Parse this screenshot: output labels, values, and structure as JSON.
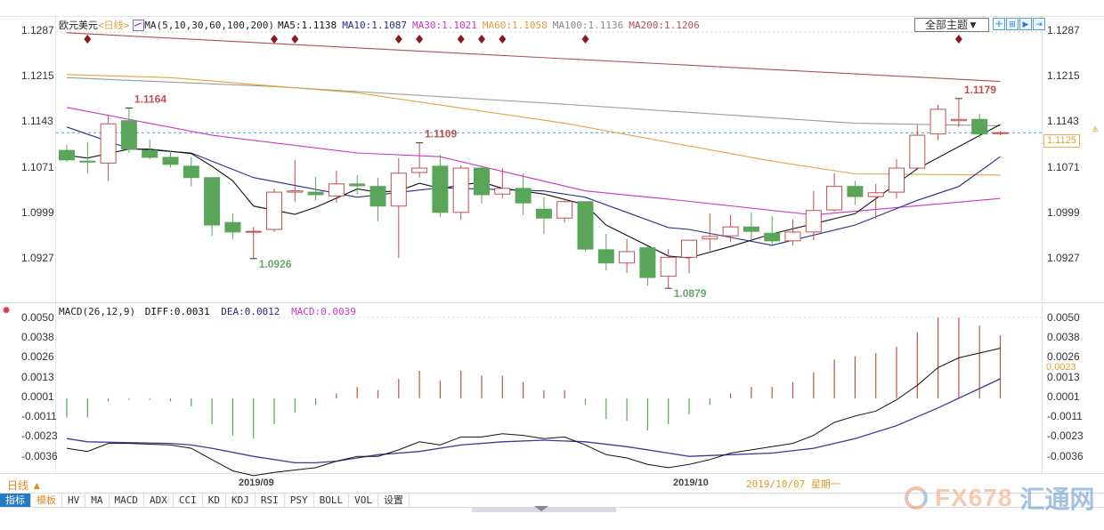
{
  "header": {
    "symbol": "欧元美元",
    "period": "<日线>",
    "ma_params": "MA(5,10,30,60,100,200)",
    "ma5": "MA5:1.1138",
    "ma10": "MA10:1.1087",
    "ma30": "MA30:1.1021",
    "ma60": "MA60:1.1058",
    "ma100": "MA100:1.1136",
    "ma200": "MA200:1.1206"
  },
  "toolbar": {
    "theme_select": "全部主题▼",
    "buttons": [
      {
        "icon": "crosshair-icon",
        "glyph": "✛"
      },
      {
        "icon": "zoom-range-icon",
        "glyph": "⊞"
      },
      {
        "icon": "play-icon",
        "glyph": "▶"
      },
      {
        "icon": "jump-end-icon",
        "glyph": "⇥"
      }
    ]
  },
  "macd_header": {
    "params": "MACD(26,12,9)",
    "diff": "DIFF:0.0031",
    "dea": "DEA:0.0012",
    "macd": "MACD:0.0039"
  },
  "colors": {
    "up": "#c0504d",
    "down": "#5aa55a",
    "ma5": "#111111",
    "ma10": "#2a2a8a",
    "ma30": "#cc33cc",
    "ma60": "#e8a040",
    "ma100": "#9a9a9a",
    "ma200": "#b05050",
    "diff": "#111111",
    "dea": "#3a3a9a",
    "signal_marker": "#8b1a1a",
    "last_price_line": "#3a9ad8"
  },
  "price_axis": {
    "ticks": [
      "1.1287",
      "1.1215",
      "1.1143",
      "1.1071",
      "1.0999",
      "1.0927"
    ],
    "last_price": "1.1125",
    "last_price_arrow": "≜"
  },
  "macd_axis": {
    "ticks": [
      "0.0050",
      "0.0038",
      "0.0026",
      "0.0013",
      "0.0001",
      "-0.0011",
      "-0.0023",
      "-0.0036"
    ],
    "current": "0.0023"
  },
  "annotations": {
    "high1": "1.1164",
    "low1": "1.0926",
    "high2": "1.1109",
    "low2": "1.0879",
    "high3": "1.1179"
  },
  "footer": {
    "period_label": "日线 ▲",
    "date_sep": "2019/09",
    "date_oct": "2019/10",
    "cursor_date": "2019/10/07 星期一",
    "tabs": [
      "指标",
      "模板",
      "HV",
      "MA",
      "MACD",
      "ADX",
      "CCI",
      "KD",
      "KDJ",
      "RSI",
      "PSY",
      "BOLL",
      "VOL",
      "设置"
    ],
    "watermark_brand": "FX678",
    "watermark_cn": "汇通网"
  },
  "chart_data": {
    "type": "candlestick",
    "title": "欧元美元 日线",
    "ohlc": [
      [
        1.1097,
        1.1106,
        1.1079,
        1.1082
      ],
      [
        1.108,
        1.111,
        1.1061,
        1.1079
      ],
      [
        1.1077,
        1.1151,
        1.1049,
        1.1139
      ],
      [
        1.1144,
        1.1164,
        1.1093,
        1.1099
      ],
      [
        1.1097,
        1.1114,
        1.1083,
        1.1086
      ],
      [
        1.1086,
        1.1096,
        1.107,
        1.1075
      ],
      [
        1.1072,
        1.1086,
        1.104,
        1.1054
      ],
      [
        1.1054,
        1.1054,
        1.0962,
        1.0979
      ],
      [
        1.0983,
        1.0997,
        1.0957,
        1.0968
      ],
      [
        1.0968,
        1.0976,
        1.0926,
        1.0969
      ],
      [
        1.0972,
        1.1037,
        1.0968,
        1.1031
      ],
      [
        1.1031,
        1.1082,
        1.1016,
        1.1033
      ],
      [
        1.1031,
        1.1055,
        1.1018,
        1.1027
      ],
      [
        1.1025,
        1.1065,
        1.1014,
        1.1044
      ],
      [
        1.1044,
        1.1058,
        1.1028,
        1.1041
      ],
      [
        1.104,
        1.1054,
        1.0985,
        1.1009
      ],
      [
        1.1009,
        1.1085,
        1.0927,
        1.1061
      ],
      [
        1.1062,
        1.1109,
        1.1054,
        1.1069
      ],
      [
        1.1072,
        1.109,
        1.0992,
        1.0999
      ],
      [
        1.0999,
        1.1073,
        1.0988,
        1.1069
      ],
      [
        1.1069,
        1.1073,
        1.1013,
        1.1027
      ],
      [
        1.1028,
        1.1069,
        1.1021,
        1.1037
      ],
      [
        1.1037,
        1.1061,
        1.0995,
        1.1014
      ],
      [
        1.1004,
        1.1023,
        1.0965,
        1.099
      ],
      [
        1.099,
        1.1021,
        1.0983,
        1.1016
      ],
      [
        1.1016,
        1.1016,
        1.0937,
        1.0941
      ],
      [
        1.094,
        1.0965,
        1.0907,
        1.0919
      ],
      [
        1.0919,
        1.0957,
        1.0903,
        1.0937
      ],
      [
        1.0943,
        1.0945,
        1.0883,
        1.0896
      ],
      [
        1.0898,
        1.0941,
        1.0879,
        1.0928
      ],
      [
        1.0928,
        1.0955,
        1.0903,
        1.0955
      ],
      [
        1.0957,
        1.0997,
        1.0938,
        1.0961
      ],
      [
        1.0962,
        1.0995,
        1.0952,
        1.0976
      ],
      [
        1.0976,
        1.0999,
        1.0955,
        1.0969
      ],
      [
        1.0966,
        1.0993,
        1.0945,
        1.0954
      ],
      [
        1.0954,
        1.0988,
        1.0947,
        1.0968
      ],
      [
        1.0968,
        1.1033,
        1.0955,
        1.1002
      ],
      [
        1.1003,
        1.1061,
        1.1,
        1.104
      ],
      [
        1.104,
        1.1049,
        1.1011,
        1.1024
      ],
      [
        1.1024,
        1.1044,
        1.0989,
        1.103
      ],
      [
        1.1031,
        1.1083,
        1.1021,
        1.1069
      ],
      [
        1.1069,
        1.1137,
        1.1068,
        1.1121
      ],
      [
        1.1123,
        1.1169,
        1.1113,
        1.1162
      ],
      [
        1.1144,
        1.1179,
        1.1134,
        1.1146
      ],
      [
        1.1146,
        1.1155,
        1.1117,
        1.1123
      ],
      [
        1.1125,
        1.1128,
        1.1121,
        1.1125
      ]
    ],
    "ma": {
      "ma5": [
        [
          0,
          1.1089
        ],
        [
          1,
          1.1085
        ],
        [
          3,
          1.1099
        ],
        [
          4,
          1.1099
        ],
        [
          6,
          1.1092
        ],
        [
          7,
          1.1072
        ],
        [
          8,
          1.1049
        ],
        [
          9,
          1.1009
        ],
        [
          11,
          1.0996
        ],
        [
          12,
          1.1007
        ],
        [
          14,
          1.1036
        ],
        [
          15,
          1.1031
        ],
        [
          16,
          1.1033
        ],
        [
          17,
          1.1045
        ],
        [
          18,
          1.1037
        ],
        [
          20,
          1.1047
        ],
        [
          21,
          1.1037
        ],
        [
          23,
          1.1028
        ],
        [
          25,
          1.1011
        ],
        [
          26,
          1.0979
        ],
        [
          29,
          1.093
        ],
        [
          30,
          1.0927
        ],
        [
          32,
          1.0945
        ],
        [
          34,
          1.0965
        ],
        [
          38,
          1.0997
        ],
        [
          41,
          1.1068
        ],
        [
          45,
          1.1138
        ]
      ],
      "ma10": [
        [
          0,
          1.1134
        ],
        [
          3,
          1.11
        ],
        [
          6,
          1.1093
        ],
        [
          9,
          1.1054
        ],
        [
          14,
          1.1023
        ],
        [
          18,
          1.1038
        ],
        [
          23,
          1.1033
        ],
        [
          25,
          1.1023
        ],
        [
          29,
          1.0975
        ],
        [
          30,
          1.0972
        ],
        [
          34,
          1.0947
        ],
        [
          38,
          1.0979
        ],
        [
          41,
          1.1018
        ],
        [
          43,
          1.104
        ],
        [
          45,
          1.1087
        ]
      ],
      "ma30": [
        [
          0,
          1.1165
        ],
        [
          7,
          1.1121
        ],
        [
          14,
          1.1093
        ],
        [
          18,
          1.1087
        ],
        [
          25,
          1.1033
        ],
        [
          29,
          1.102
        ],
        [
          36,
          1.0995
        ],
        [
          45,
          1.1021
        ]
      ],
      "ma60": [
        [
          0,
          1.1217
        ],
        [
          5,
          1.1212
        ],
        [
          14,
          1.1188
        ],
        [
          24,
          1.114
        ],
        [
          34,
          1.108
        ],
        [
          38,
          1.106
        ],
        [
          45,
          1.1058
        ]
      ],
      "ma100": [
        [
          0,
          1.1212
        ],
        [
          10,
          1.1198
        ],
        [
          24,
          1.117
        ],
        [
          38,
          1.114
        ],
        [
          45,
          1.1136
        ]
      ],
      "ma200": [
        [
          0,
          1.1283
        ],
        [
          45,
          1.1206
        ]
      ]
    },
    "signal_markers": [
      1,
      10,
      11,
      16,
      17,
      19,
      20,
      21,
      25,
      43
    ],
    "price_range": [
      1.087,
      1.13
    ],
    "macd": {
      "hist": [
        -0.0012,
        -0.0012,
        -0.0002,
        -0.0001,
        -0.0001,
        -0.0002,
        -0.0005,
        -0.0016,
        -0.0023,
        -0.0025,
        -0.0016,
        -0.0009,
        -0.0004,
        0.0003,
        0.0007,
        0.0005,
        0.0012,
        0.0017,
        0.0011,
        0.0017,
        0.0014,
        0.0014,
        0.001,
        0.0005,
        0.0005,
        -0.0004,
        -0.0013,
        -0.0014,
        -0.002,
        -0.0016,
        -0.001,
        -0.0004,
        0.0003,
        0.0007,
        0.0007,
        0.001,
        0.0016,
        0.0024,
        0.0026,
        0.0028,
        0.0032,
        0.0041,
        0.005,
        0.005,
        0.0045,
        0.0039
      ],
      "diff": [
        [
          0,
          -0.0031
        ],
        [
          1,
          -0.0033
        ],
        [
          2,
          -0.0028
        ],
        [
          3,
          -0.0028
        ],
        [
          5,
          -0.0029
        ],
        [
          6,
          -0.0031
        ],
        [
          7,
          -0.0038
        ],
        [
          8,
          -0.0045
        ],
        [
          9,
          -0.0048
        ],
        [
          10,
          -0.0046
        ],
        [
          12,
          -0.0043
        ],
        [
          13,
          -0.0039
        ],
        [
          14,
          -0.0036
        ],
        [
          15,
          -0.0036
        ],
        [
          16,
          -0.0032
        ],
        [
          17,
          -0.0027
        ],
        [
          18,
          -0.0029
        ],
        [
          19,
          -0.0024
        ],
        [
          20,
          -0.0024
        ],
        [
          21,
          -0.0022
        ],
        [
          22,
          -0.0023
        ],
        [
          23,
          -0.0025
        ],
        [
          24,
          -0.0024
        ],
        [
          25,
          -0.0029
        ],
        [
          26,
          -0.0035
        ],
        [
          27,
          -0.0037
        ],
        [
          28,
          -0.0041
        ],
        [
          29,
          -0.0043
        ],
        [
          30,
          -0.0041
        ],
        [
          31,
          -0.0038
        ],
        [
          32,
          -0.0034
        ],
        [
          33,
          -0.0032
        ],
        [
          34,
          -0.003
        ],
        [
          35,
          -0.0028
        ],
        [
          36,
          -0.0023
        ],
        [
          37,
          -0.0015
        ],
        [
          38,
          -0.0011
        ],
        [
          39,
          -0.0008
        ],
        [
          40,
          -0.0001
        ],
        [
          41,
          0.0008
        ],
        [
          42,
          0.0019
        ],
        [
          43,
          0.0025
        ],
        [
          44,
          0.0028
        ],
        [
          45,
          0.0031
        ]
      ],
      "dea": [
        [
          0,
          -0.0025
        ],
        [
          1,
          -0.0027
        ],
        [
          5,
          -0.0028
        ],
        [
          6,
          -0.0029
        ],
        [
          7,
          -0.0031
        ],
        [
          9,
          -0.0036
        ],
        [
          11,
          -0.004
        ],
        [
          12,
          -0.004
        ],
        [
          13,
          -0.0039
        ],
        [
          15,
          -0.0035
        ],
        [
          17,
          -0.0033
        ],
        [
          19,
          -0.0029
        ],
        [
          21,
          -0.0027
        ],
        [
          23,
          -0.0026
        ],
        [
          25,
          -0.0027
        ],
        [
          27,
          -0.003
        ],
        [
          29,
          -0.0034
        ],
        [
          30,
          -0.0036
        ],
        [
          32,
          -0.0035
        ],
        [
          34,
          -0.0034
        ],
        [
          36,
          -0.0031
        ],
        [
          38,
          -0.0025
        ],
        [
          40,
          -0.0017
        ],
        [
          42,
          -0.0006
        ],
        [
          43,
          0.0
        ],
        [
          44,
          0.0006
        ],
        [
          45,
          0.0012
        ]
      ],
      "range": [
        -0.005,
        0.0052
      ]
    }
  }
}
